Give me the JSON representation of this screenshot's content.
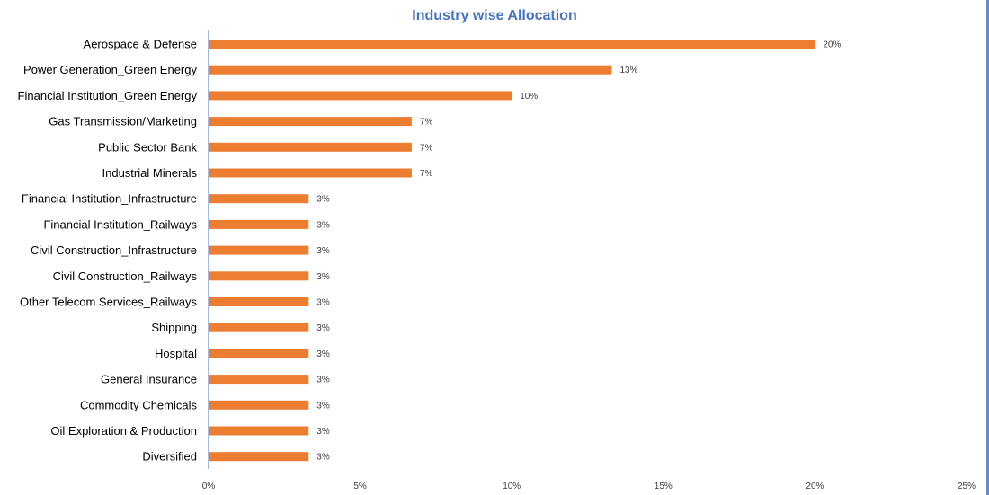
{
  "chart_data": {
    "type": "bar",
    "orientation": "horizontal",
    "title": "Industry wise Allocation",
    "xlabel": "",
    "ylabel": "",
    "categories": [
      "Aerospace & Defense",
      "Power Generation_Green Energy",
      "Financial Institution_Green Energy",
      "Gas Transmission/Marketing",
      "Public Sector Bank",
      "Industrial Minerals",
      "Financial Institution_Infrastructure",
      "Financial Institution_Railways",
      "Civil Construction_Infrastructure",
      "Civil Construction_Railways",
      "Other Telecom Services_Railways",
      "Shipping",
      "Hospital",
      "General Insurance",
      "Commodity Chemicals",
      "Oil Exploration & Production",
      "Diversified"
    ],
    "values": [
      20,
      13.3,
      10,
      6.7,
      6.7,
      6.7,
      3.3,
      3.3,
      3.3,
      3.3,
      3.3,
      3.3,
      3.3,
      3.3,
      3.3,
      3.3,
      3.3
    ],
    "data_labels": [
      "20%",
      "13%",
      "10%",
      "7%",
      "7%",
      "7%",
      "3%",
      "3%",
      "3%",
      "3%",
      "3%",
      "3%",
      "3%",
      "3%",
      "3%",
      "3%",
      "3%"
    ],
    "xlim": [
      0,
      25
    ],
    "x_ticks": [
      0,
      5,
      10,
      15,
      20,
      25
    ],
    "x_tick_labels": [
      "0%",
      "5%",
      "10%",
      "15%",
      "20%",
      "25%"
    ],
    "grid": false,
    "legend": "none",
    "bar_color": "#ed7d31",
    "title_color": "#4472c4",
    "axis_color": "#4472c4"
  }
}
